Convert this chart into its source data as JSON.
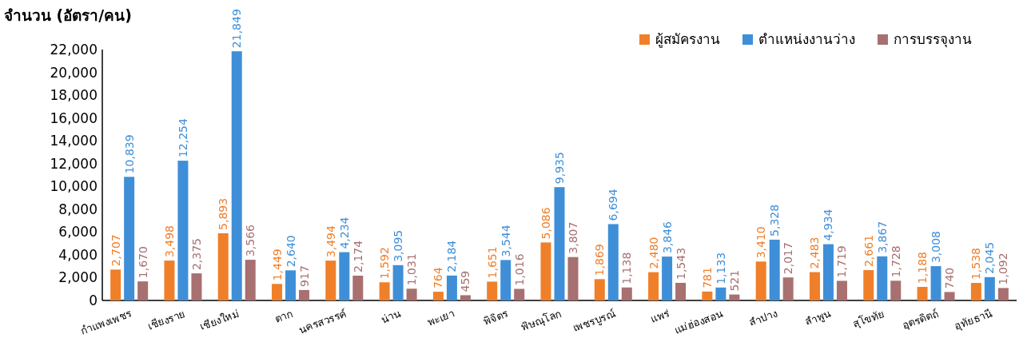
{
  "chart_data": {
    "type": "bar",
    "ylabel": "จำนวน (อัตรา/คน)",
    "categories": [
      "กำแพงเพชร",
      "เชียงราย",
      "เชียงใหม่",
      "ตาก",
      "นครสวรรค์",
      "น่าน",
      "พะเยา",
      "พิจิตร",
      "พิษณุโลก",
      "เพชรบูรณ์",
      "แพร่",
      "แม่ฮ่องสอน",
      "ลำปาง",
      "ลำพูน",
      "สุโขทัย",
      "อุตรดิตถ์",
      "อุทัยธานี"
    ],
    "series": [
      {
        "name": "ผู้สมัครงาน",
        "color": "#f07f2a",
        "values": [
          2707,
          3498,
          5893,
          1449,
          3494,
          1592,
          764,
          1651,
          5086,
          1869,
          2480,
          781,
          3410,
          2483,
          2661,
          1188,
          1538
        ],
        "value_labels": [
          "2,707",
          "3,498",
          "5,893",
          "1,449",
          "3,494",
          "1,592",
          "764",
          "1,651",
          "5,086",
          "1,869",
          "2,480",
          "781",
          "3,410",
          "2,483",
          "2,661",
          "1,188",
          "1,538"
        ]
      },
      {
        "name": "ตำแหน่งงานว่าง",
        "color": "#3f8fd8",
        "values": [
          10839,
          12254,
          21849,
          2640,
          4234,
          3095,
          2184,
          3544,
          9935,
          6694,
          3846,
          1133,
          5328,
          4934,
          3867,
          3008,
          2045
        ],
        "value_labels": [
          "10,839",
          "12,254",
          "21,849",
          "2,640",
          "4,234",
          "3,095",
          "2,184",
          "3,544",
          "9,935",
          "6,694",
          "3,846",
          "1,133",
          "5,328",
          "4,934",
          "3,867",
          "3,008",
          "2,045"
        ]
      },
      {
        "name": "การบรรจุงาน",
        "color": "#a87070",
        "values": [
          1670,
          2375,
          3566,
          917,
          2174,
          1031,
          459,
          1016,
          3807,
          1138,
          1543,
          521,
          2017,
          1719,
          1728,
          740,
          1092
        ],
        "value_labels": [
          "1,670",
          "2,375",
          "3,566",
          "917",
          "2,174",
          "1,031",
          "459",
          "1,016",
          "3,807",
          "1,138",
          "1,543",
          "521",
          "2,017",
          "1,719",
          "1,728",
          "740",
          "1,092"
        ]
      }
    ],
    "ylim": [
      0,
      22000
    ],
    "yticks": [
      0,
      {
        "value": 2000,
        "label": "2,000"
      },
      {
        "value": 4000,
        "label": "4,000"
      },
      {
        "value": 6000,
        "label": "6,000"
      },
      {
        "value": 8000,
        "label": "8,000"
      },
      {
        "value": 10000,
        "label": "10,000"
      },
      {
        "value": 12000,
        "label": "12,000"
      },
      {
        "value": 14000,
        "label": "14,000"
      },
      {
        "value": 16000,
        "label": "16,000"
      },
      {
        "value": 18000,
        "label": "18,000"
      },
      {
        "value": 20000,
        "label": "20,000"
      },
      {
        "value": 22000,
        "label": "22,000"
      }
    ],
    "grid": false,
    "legend": "top right"
  }
}
